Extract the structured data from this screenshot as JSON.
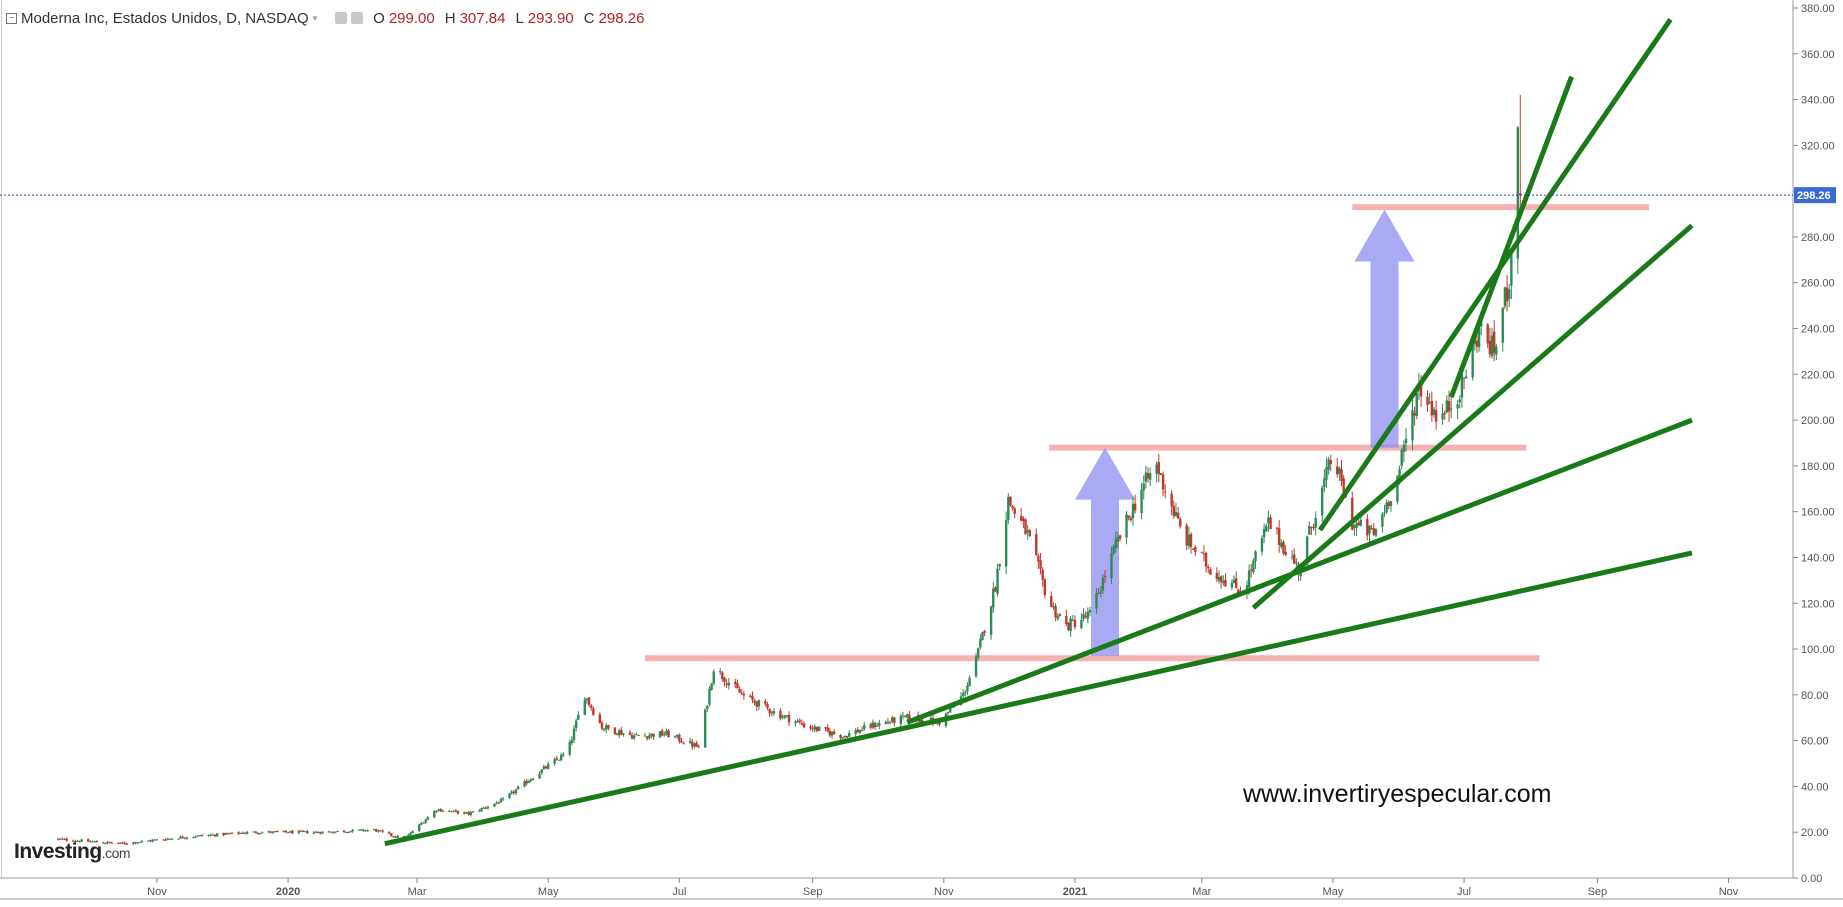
{
  "header": {
    "collapse_glyph": "−",
    "instrument": "Moderna Inc, Estados Unidos, D, NASDAQ",
    "caret": "▾",
    "open_label": "O",
    "open_value": "299.00",
    "high_label": "H",
    "high_value": "307.84",
    "low_label": "L",
    "low_value": "293.90",
    "close_label": "C",
    "close_value": "298.26",
    "icons": [
      "eye-icon",
      "settings-icon"
    ]
  },
  "brand": {
    "name": "Investing",
    "suffix": ".com"
  },
  "watermark": "www.invertiryespecular.com",
  "colors": {
    "up_candle": "#2e8b57",
    "down_candle": "#c0392b",
    "trendline": "#1a7a1a",
    "resistance": "#f4a4a4",
    "arrow": "#8c8cf0",
    "last_price_badge": "#3a6ad4"
  },
  "chart_data": {
    "type": "candlestick",
    "series": [
      {
        "name": "Moderna Inc",
        "x": [
          "2019-09-15",
          "2019-10-15",
          "2019-11-15",
          "2019-12-15",
          "2020-01-15",
          "2020-02-10",
          "2020-02-24",
          "2020-03-10",
          "2020-03-25",
          "2020-04-10",
          "2020-04-25",
          "2020-05-10",
          "2020-05-18",
          "2020-05-26",
          "2020-06-10",
          "2020-06-25",
          "2020-07-10",
          "2020-07-17",
          "2020-07-30",
          "2020-08-15",
          "2020-08-30",
          "2020-09-15",
          "2020-09-30",
          "2020-10-15",
          "2020-10-30",
          "2020-11-10",
          "2020-11-16",
          "2020-11-25",
          "2020-12-01",
          "2020-12-10",
          "2020-12-20",
          "2020-12-28",
          "2021-01-08",
          "2021-01-20",
          "2021-02-01",
          "2021-02-08",
          "2021-02-20",
          "2021-03-05",
          "2021-03-20",
          "2021-04-01",
          "2021-04-15",
          "2021-05-01",
          "2021-05-10",
          "2021-05-20",
          "2021-05-31",
          "2021-06-10",
          "2021-06-20",
          "2021-06-30",
          "2021-07-08",
          "2021-07-15",
          "2021-07-22",
          "2021-07-26",
          "2021-07-29"
        ],
        "y": [
          17,
          15,
          18,
          20,
          20,
          21,
          17,
          30,
          28,
          34,
          45,
          55,
          80,
          66,
          62,
          63,
          57,
          92,
          80,
          72,
          66,
          62,
          67,
          70,
          68,
          80,
          95,
          128,
          165,
          150,
          120,
          110,
          115,
          145,
          170,
          180,
          150,
          135,
          125,
          155,
          135,
          185,
          155,
          150,
          175,
          215,
          200,
          215,
          240,
          230,
          262,
          320,
          298
        ]
      }
    ],
    "y_axis": {
      "min": 0,
      "max": 380,
      "ticks": [
        "0.00",
        "20.00",
        "40.00",
        "60.00",
        "80.00",
        "100.00",
        "120.00",
        "140.00",
        "160.00",
        "180.00",
        "200.00",
        "220.00",
        "240.00",
        "260.00",
        "280.00",
        "300.00",
        "320.00",
        "340.00",
        "360.00",
        "380.00"
      ]
    },
    "x_axis": {
      "ticks": [
        {
          "label": "Nov",
          "date": "2019-11-01",
          "bold": false
        },
        {
          "label": "2020",
          "date": "2020-01-01",
          "bold": true
        },
        {
          "label": "Mar",
          "date": "2020-03-01",
          "bold": false
        },
        {
          "label": "May",
          "date": "2020-05-01",
          "bold": false
        },
        {
          "label": "Jul",
          "date": "2020-07-01",
          "bold": false
        },
        {
          "label": "Sep",
          "date": "2020-09-01",
          "bold": false
        },
        {
          "label": "Nov",
          "date": "2020-11-01",
          "bold": false
        },
        {
          "label": "2021",
          "date": "2021-01-01",
          "bold": true
        },
        {
          "label": "Mar",
          "date": "2021-03-01",
          "bold": false
        },
        {
          "label": "May",
          "date": "2021-05-01",
          "bold": false
        },
        {
          "label": "Jul",
          "date": "2021-07-01",
          "bold": false
        },
        {
          "label": "Sep",
          "date": "2021-09-01",
          "bold": false
        },
        {
          "label": "Nov",
          "date": "2021-11-01",
          "bold": false
        }
      ]
    },
    "last_price": {
      "value": 298.26,
      "label": "298.26"
    },
    "ohlc_last_bar": {
      "open": 299.0,
      "high": 307.84,
      "low": 293.9,
      "close": 298.26,
      "spike_high": 342
    },
    "annotations": {
      "trendlines": [
        {
          "from": [
            "2020-02-15",
            15
          ],
          "to": [
            "2021-10-15",
            142
          ]
        },
        {
          "from": [
            "2020-10-15",
            68
          ],
          "to": [
            "2021-10-15",
            200
          ]
        },
        {
          "from": [
            "2021-03-25",
            118
          ],
          "to": [
            "2021-10-15",
            285
          ]
        },
        {
          "from": [
            "2021-04-25",
            152
          ],
          "to": [
            "2021-10-05",
            375
          ]
        },
        {
          "from": [
            "2021-06-25",
            210
          ],
          "to": [
            "2021-08-20",
            350
          ]
        }
      ],
      "resistance_levels": [
        {
          "y": 96,
          "from": "2020-06-15",
          "to": "2021-08-05"
        },
        {
          "y": 188,
          "from": "2020-12-20",
          "to": "2021-07-30"
        },
        {
          "y": 293,
          "from": "2021-05-10",
          "to": "2021-09-25"
        }
      ],
      "arrows": [
        {
          "x": "2021-01-15",
          "y_from": 97,
          "y_to": 188
        },
        {
          "x": "2021-05-25",
          "y_from": 188,
          "y_to": 292
        }
      ]
    },
    "grid": false,
    "legend": "none"
  }
}
